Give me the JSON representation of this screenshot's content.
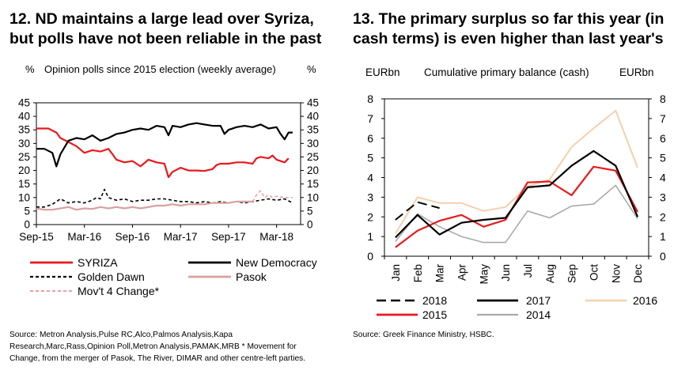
{
  "left": {
    "title_line1": "12. ND maintains a large lead over Syriza,",
    "title_line2": "but polls have not been reliable in the past",
    "source_line1": "Source: Metron Analysis,Pulse RC,Alco,Palmos Analysis,Kapa",
    "source_line2": "Research,Marc,Rass,Opinion Poll,Metron Analysis,PAMAK,MRB  * Movement for",
    "source_line3": "Change, from the merger of Pasok, The River, DIMAR and other centre-left parties."
  },
  "right": {
    "title_line1": "13. The primary surplus so far this year (in",
    "title_line2": "cash terms) is even higher than last year's",
    "source": "Source: Greek Finance Ministry, HSBC."
  },
  "chart_data": [
    {
      "type": "line",
      "title": "Opinion polls since 2015 election (weekly average)",
      "ylabel_left": "%",
      "ylabel_right": "%",
      "ylim": [
        0,
        45
      ],
      "yticks": [
        "0",
        "5",
        "10",
        "15",
        "20",
        "25",
        "30",
        "35",
        "40",
        "45"
      ],
      "x_tick_labels": [
        "Sep-15",
        "Mar-16",
        "Sep-16",
        "Mar-17",
        "Sep-17",
        "Mar-18"
      ],
      "x_tick_months": [
        0,
        6,
        12,
        18,
        24,
        30
      ],
      "x_range_months": [
        0,
        33
      ],
      "series": [
        {
          "name": "SYRIZA",
          "color": "#e8191c",
          "dash": "solid",
          "width": 2.2,
          "points": [
            [
              0,
              35.5
            ],
            [
              1.5,
              35.5
            ],
            [
              2.5,
              34
            ],
            [
              3,
              32
            ],
            [
              4,
              30.5
            ],
            [
              5,
              29
            ],
            [
              6,
              26.5
            ],
            [
              7,
              27.5
            ],
            [
              8,
              27
            ],
            [
              9,
              28
            ],
            [
              9.5,
              26
            ],
            [
              10,
              24
            ],
            [
              11,
              23
            ],
            [
              12,
              23.5
            ],
            [
              13,
              21.5
            ],
            [
              14,
              24
            ],
            [
              15,
              23
            ],
            [
              16,
              22.5
            ],
            [
              16.5,
              17.5
            ],
            [
              17,
              19.5
            ],
            [
              18,
              21
            ],
            [
              19,
              20
            ],
            [
              20,
              20
            ],
            [
              21,
              19.8
            ],
            [
              22,
              20.5
            ],
            [
              22.5,
              22
            ],
            [
              23,
              22.5
            ],
            [
              24,
              22.5
            ],
            [
              25,
              23
            ],
            [
              26,
              23
            ],
            [
              27,
              22.5
            ],
            [
              27.5,
              24.5
            ],
            [
              28,
              25
            ],
            [
              29,
              24.5
            ],
            [
              29.5,
              25.5
            ],
            [
              30,
              24
            ],
            [
              31,
              23
            ],
            [
              31.5,
              24.5
            ]
          ]
        },
        {
          "name": "New Democracy",
          "color": "#000000",
          "dash": "solid",
          "width": 2.2,
          "points": [
            [
              0,
              28
            ],
            [
              1,
              28
            ],
            [
              2,
              26.5
            ],
            [
              2.5,
              21.5
            ],
            [
              3,
              26
            ],
            [
              4,
              31
            ],
            [
              5,
              32
            ],
            [
              6,
              31.5
            ],
            [
              7,
              33
            ],
            [
              8,
              31
            ],
            [
              9,
              32
            ],
            [
              10,
              33.5
            ],
            [
              11,
              34
            ],
            [
              12,
              35
            ],
            [
              13,
              35.5
            ],
            [
              14,
              35
            ],
            [
              15,
              36.5
            ],
            [
              16,
              36
            ],
            [
              16.5,
              33
            ],
            [
              17,
              36.5
            ],
            [
              18,
              36
            ],
            [
              19,
              37
            ],
            [
              20,
              37.5
            ],
            [
              21,
              37
            ],
            [
              22,
              36.5
            ],
            [
              23,
              36.5
            ],
            [
              23.5,
              33.5
            ],
            [
              24,
              35
            ],
            [
              25,
              36
            ],
            [
              26,
              36.5
            ],
            [
              27,
              36
            ],
            [
              28,
              37
            ],
            [
              29,
              35.5
            ],
            [
              30,
              36
            ],
            [
              30.5,
              33.5
            ],
            [
              31,
              31.5
            ],
            [
              31.5,
              34
            ],
            [
              32,
              34
            ]
          ]
        },
        {
          "name": "Golden Dawn",
          "color": "#000000",
          "dash": "4,3",
          "width": 1.6,
          "points": [
            [
              0,
              6.5
            ],
            [
              1,
              6.5
            ],
            [
              2,
              7.5
            ],
            [
              3,
              9.5
            ],
            [
              4,
              8
            ],
            [
              5,
              8.5
            ],
            [
              6,
              8
            ],
            [
              7,
              9
            ],
            [
              7.5,
              10
            ],
            [
              8,
              9.5
            ],
            [
              8.5,
              13
            ],
            [
              9,
              10
            ],
            [
              10,
              9
            ],
            [
              11,
              9.5
            ],
            [
              12,
              8.5
            ],
            [
              13,
              9
            ],
            [
              14,
              9
            ],
            [
              15,
              9.5
            ],
            [
              16,
              9.5
            ],
            [
              17,
              9
            ],
            [
              18,
              8.5
            ],
            [
              19,
              8.5
            ],
            [
              20,
              8
            ],
            [
              21,
              8.5
            ],
            [
              22,
              8
            ],
            [
              23,
              8.5
            ],
            [
              24,
              8
            ],
            [
              25,
              8.5
            ],
            [
              26,
              8
            ],
            [
              27,
              8.5
            ],
            [
              28,
              9
            ],
            [
              29,
              9.5
            ],
            [
              30,
              9
            ],
            [
              31,
              9.5
            ],
            [
              32,
              8
            ]
          ]
        },
        {
          "name": "Pasok",
          "color": "#d9a0a0",
          "dash": "solid",
          "width": 2.2,
          "points": [
            [
              0,
              6
            ],
            [
              1,
              5.5
            ],
            [
              2,
              5.5
            ],
            [
              3,
              6
            ],
            [
              4,
              6.5
            ],
            [
              5,
              5.5
            ],
            [
              6,
              6
            ],
            [
              7,
              5.8
            ],
            [
              8,
              6.5
            ],
            [
              9,
              6
            ],
            [
              10,
              6.5
            ],
            [
              11,
              6
            ],
            [
              12,
              6.5
            ],
            [
              13,
              6
            ],
            [
              14,
              6.5
            ],
            [
              15,
              7
            ],
            [
              16,
              7
            ],
            [
              17,
              7.5
            ],
            [
              18,
              7
            ],
            [
              19,
              7.5
            ],
            [
              20,
              7.5
            ],
            [
              21,
              7.5
            ],
            [
              22,
              8
            ],
            [
              23,
              8
            ],
            [
              24,
              8
            ],
            [
              25,
              8.5
            ],
            [
              26,
              8.5
            ],
            [
              27,
              8.5
            ]
          ]
        },
        {
          "name": "Mov't 4 Change*",
          "color": "#e8a0a0",
          "dash": "4,3",
          "width": 1.5,
          "points": [
            [
              27,
              8.5
            ],
            [
              27.5,
              11
            ],
            [
              28,
              12.5
            ],
            [
              28.5,
              10
            ],
            [
              29,
              11
            ],
            [
              29.5,
              10
            ],
            [
              30,
              10.5
            ],
            [
              31,
              10
            ],
            [
              32,
              10
            ]
          ]
        }
      ]
    },
    {
      "type": "line",
      "title": "Cumulative primary balance (cash)",
      "ylabel_left": "EURbn",
      "ylabel_right": "EURbn",
      "ylim": [
        0,
        8
      ],
      "yticks": [
        "0",
        "1",
        "2",
        "3",
        "4",
        "5",
        "6",
        "7",
        "8"
      ],
      "categories": [
        "Jan",
        "Feb",
        "Mar",
        "Apr",
        "May",
        "Jun",
        "Jul",
        "Aug",
        "Sep",
        "Oct",
        "Nov",
        "Dec"
      ],
      "series": [
        {
          "name": "2018",
          "color": "#000000",
          "dash": "12,6",
          "width": 2,
          "values": [
            1.85,
            2.75,
            2.45,
            null,
            null,
            null,
            null,
            null,
            null,
            null,
            null,
            null
          ]
        },
        {
          "name": "2017",
          "color": "#000000",
          "dash": "solid",
          "width": 2.2,
          "values": [
            0.95,
            2.1,
            1.1,
            1.7,
            1.85,
            1.95,
            3.5,
            3.6,
            4.6,
            5.35,
            4.6,
            2.0
          ]
        },
        {
          "name": "2016",
          "color": "#f5cfae",
          "dash": "solid",
          "width": 2,
          "values": [
            1.15,
            3.0,
            2.7,
            2.7,
            2.3,
            2.5,
            3.55,
            3.9,
            5.55,
            6.5,
            7.4,
            4.5
          ]
        },
        {
          "name": "2015",
          "color": "#e8191c",
          "dash": "solid",
          "width": 2.2,
          "values": [
            0.45,
            1.3,
            1.8,
            2.1,
            1.5,
            1.85,
            3.75,
            3.8,
            3.1,
            4.55,
            4.35,
            2.25
          ]
        },
        {
          "name": "2014",
          "color": "#aaaaaa",
          "dash": "solid",
          "width": 1.6,
          "values": [
            0.75,
            2.15,
            1.5,
            1.0,
            0.7,
            0.7,
            2.3,
            1.95,
            2.55,
            2.65,
            3.6,
            1.9
          ]
        }
      ]
    }
  ]
}
